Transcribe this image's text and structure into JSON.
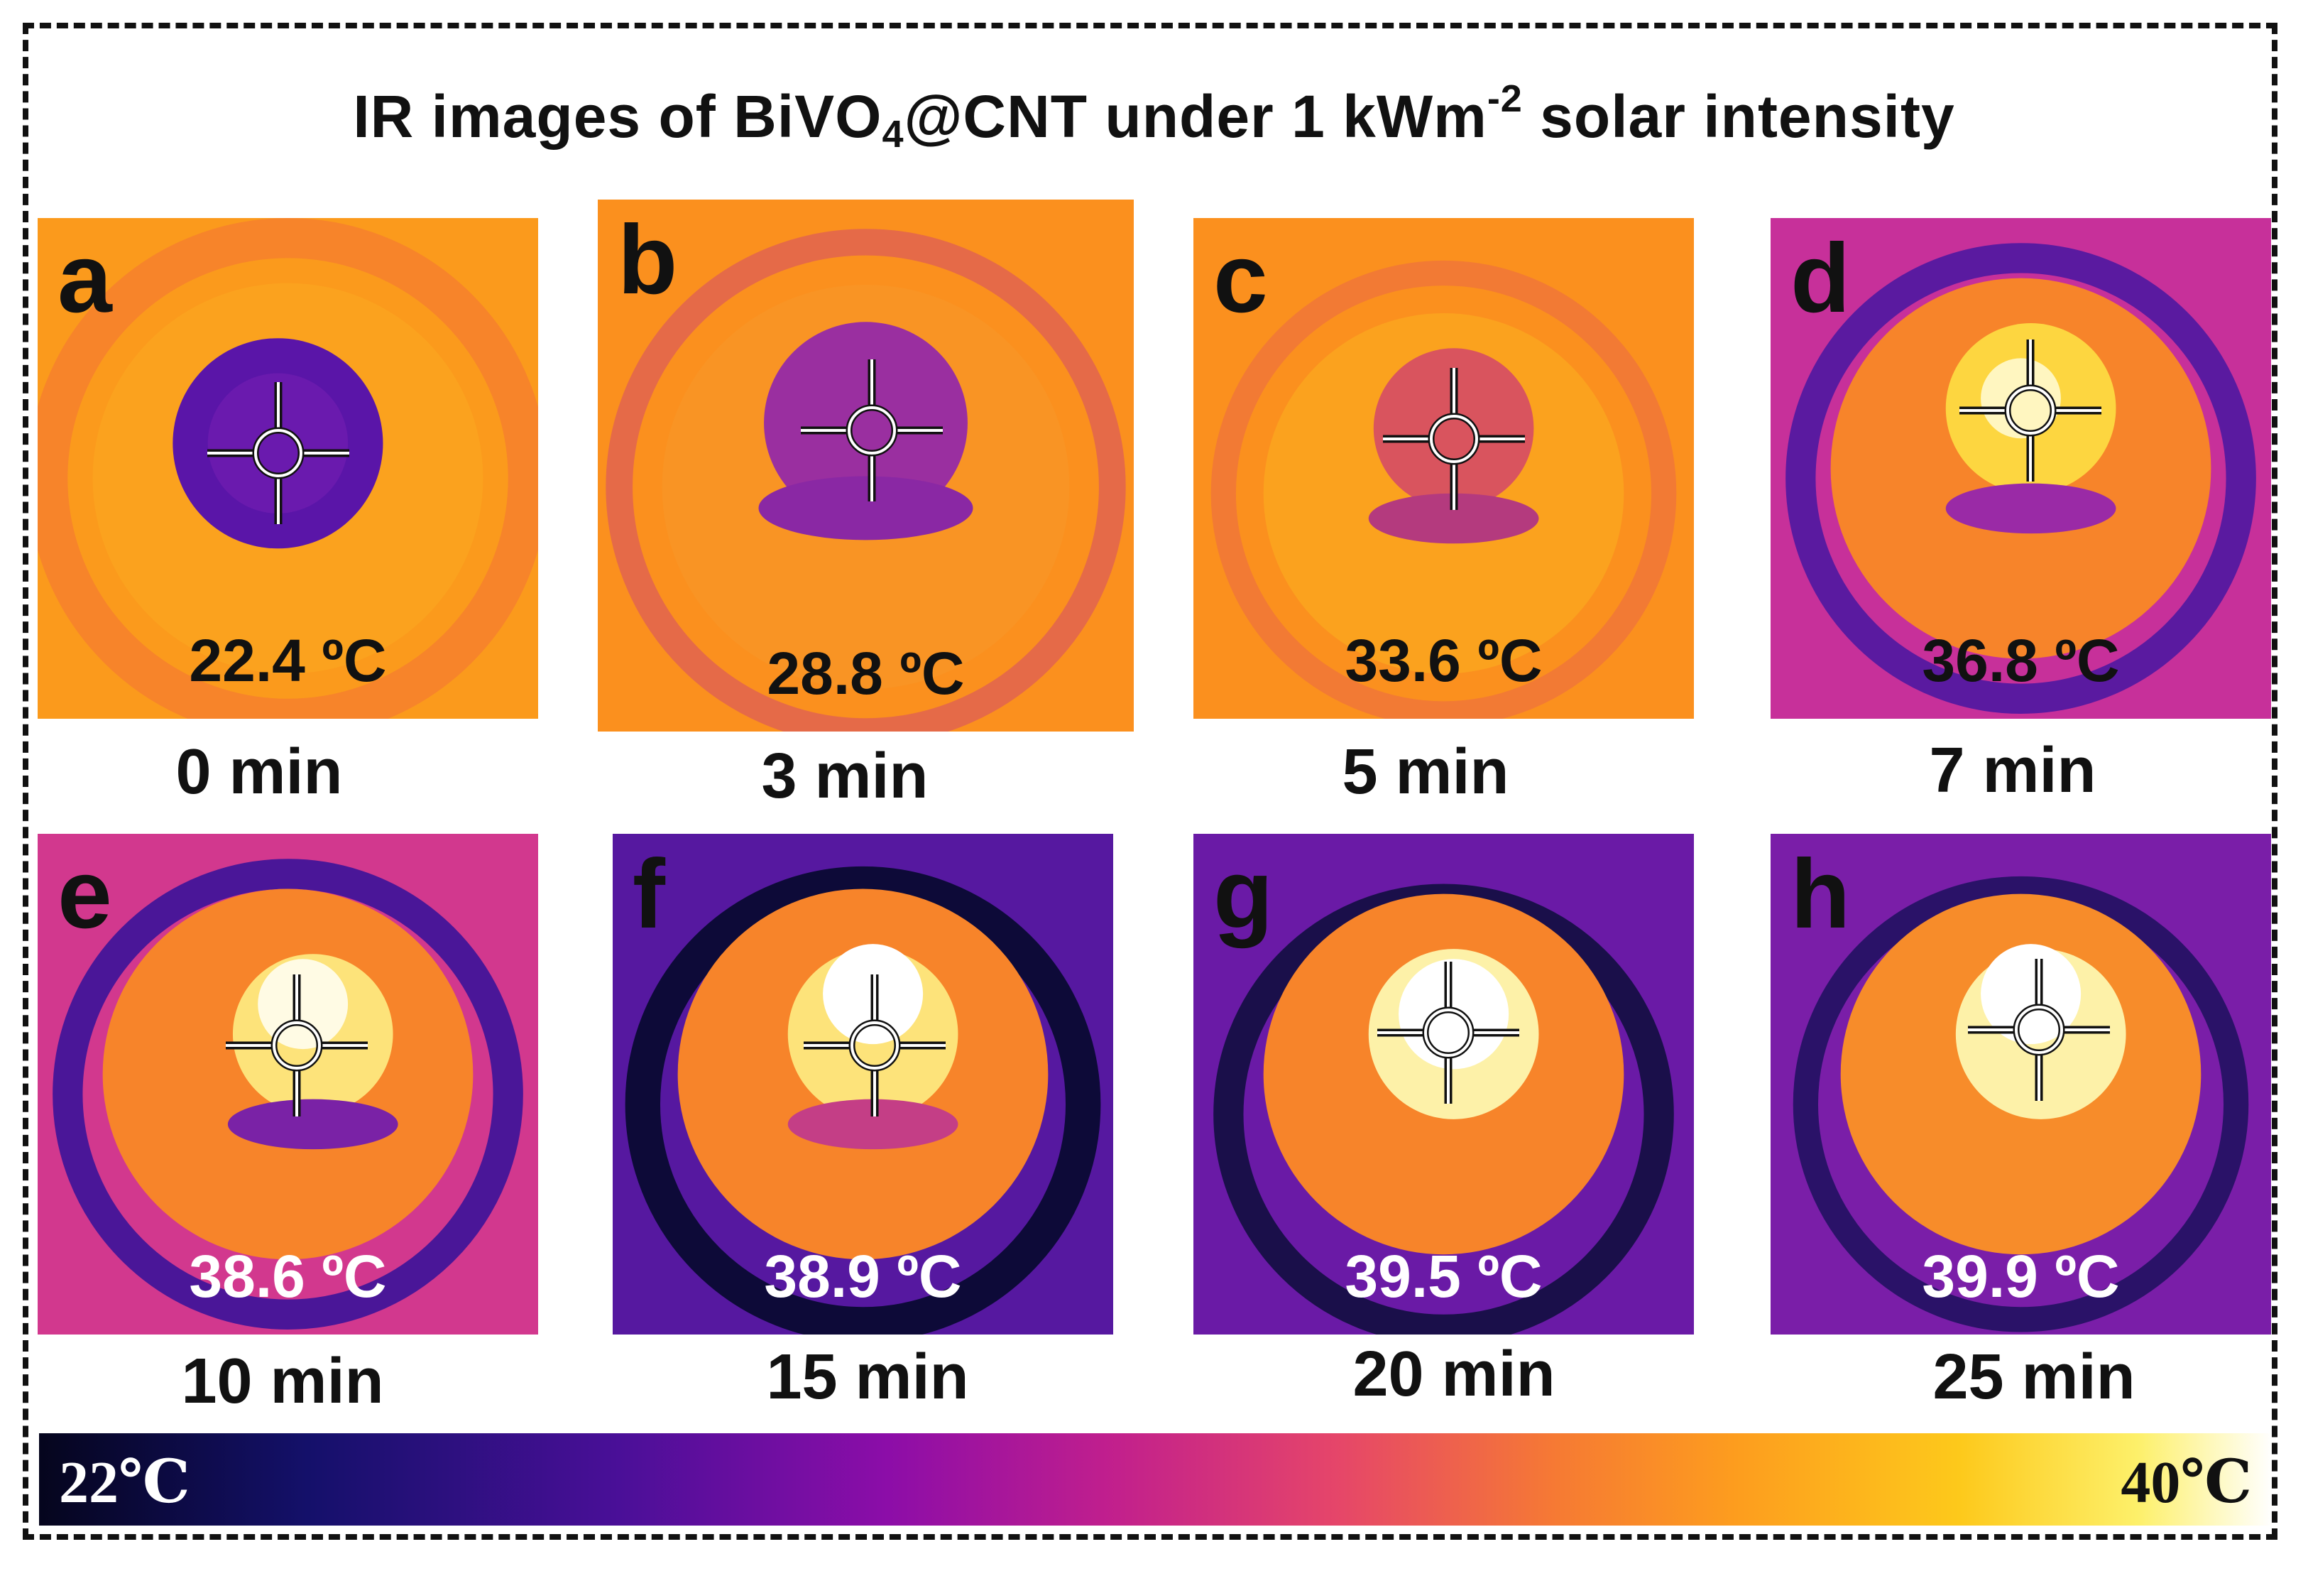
{
  "title": {
    "prefix": "IR images of BiVO",
    "subscript": "4",
    "middle": "@CNT under 1 kWm",
    "superscript": "-2",
    "suffix": " solar intensity"
  },
  "panels": [
    {
      "letter": "a",
      "temperature": "22.4 ºC",
      "time": "0 min",
      "temp_color": "#111111"
    },
    {
      "letter": "b",
      "temperature": "28.8 ºC",
      "time": "3 min",
      "temp_color": "#111111"
    },
    {
      "letter": "c",
      "temperature": "33.6 ºC",
      "time": "5 min",
      "temp_color": "#111111"
    },
    {
      "letter": "d",
      "temperature": "36.8 ºC",
      "time": "7 min",
      "temp_color": "#111111"
    },
    {
      "letter": "e",
      "temperature": "38.6 ºC",
      "time": "10 min",
      "temp_color": "#ffffff"
    },
    {
      "letter": "f",
      "temperature": "38.9 ºC",
      "time": "15 min",
      "temp_color": "#ffffff"
    },
    {
      "letter": "g",
      "temperature": "39.5 ºC",
      "time": "20 min",
      "temp_color": "#ffffff"
    },
    {
      "letter": "h",
      "temperature": "39.9 ºC",
      "time": "25 min",
      "temp_color": "#ffffff"
    }
  ],
  "color_scale": {
    "min_label": "22℃",
    "max_label": "40℃"
  }
}
